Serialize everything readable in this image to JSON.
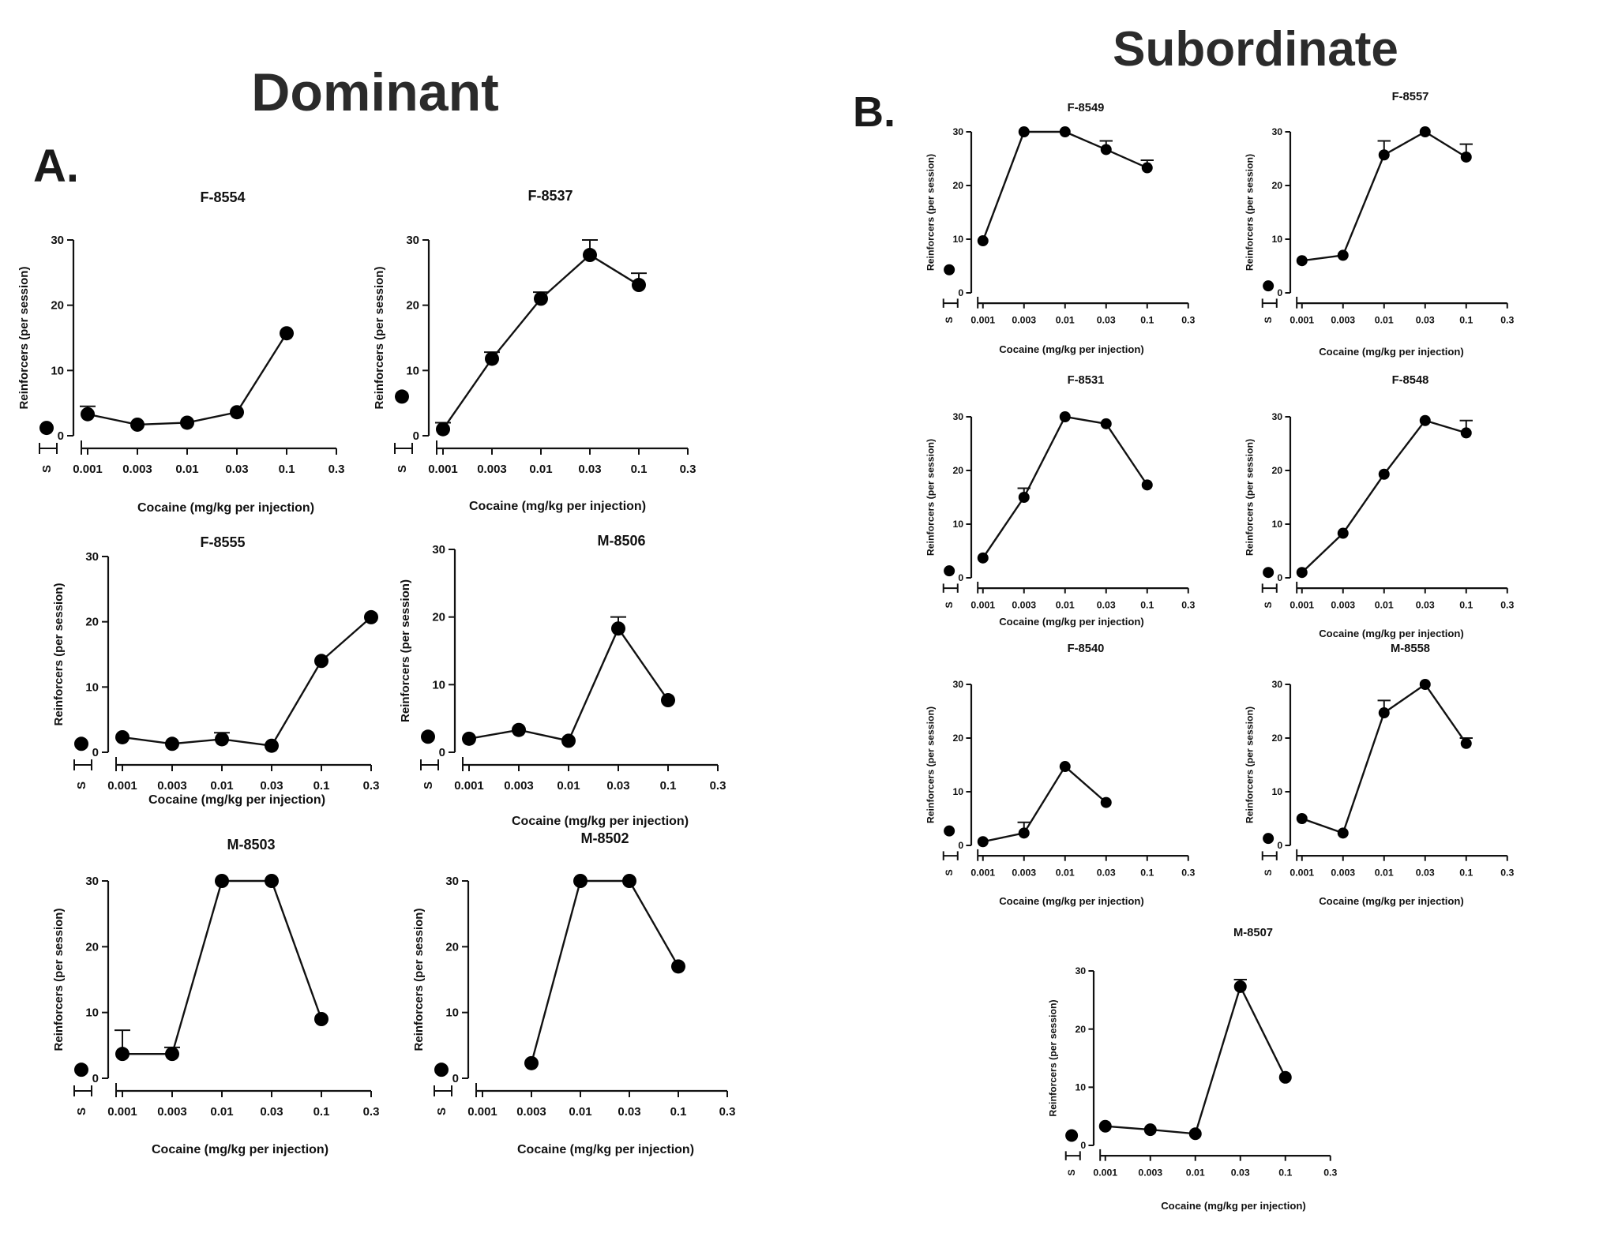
{
  "headings": {
    "dominant": "Dominant",
    "subordinate": "Subordinate",
    "panel_a": "A.",
    "panel_b": "B."
  },
  "chart_data": [
    {
      "type": "line",
      "group": "Dominant",
      "title": "F-8554",
      "xlabel": "Cocaine (mg/kg per injection)",
      "ylabel": "Reinforcers (per session)",
      "ylim": [
        0,
        30
      ],
      "yticks": [
        0,
        10,
        20,
        30
      ],
      "xticks": [
        "S",
        "0.001",
        "0.003",
        "0.01",
        "0.03",
        "0.1",
        "0.3"
      ],
      "saline": 1.2,
      "x": [
        "0.001",
        "0.003",
        "0.01",
        "0.03",
        "0.1"
      ],
      "values": [
        3.3,
        1.7,
        2.0,
        3.6,
        15.7
      ],
      "errors": [
        1.2,
        0,
        0,
        0,
        0
      ]
    },
    {
      "type": "line",
      "group": "Dominant",
      "title": "F-8537",
      "xlabel": "Cocaine (mg/kg per injection)",
      "ylabel": "Reinforcers (per session)",
      "ylim": [
        0,
        30
      ],
      "yticks": [
        0,
        10,
        20,
        30
      ],
      "xticks": [
        "S",
        "0.001",
        "0.003",
        "0.01",
        "0.03",
        "0.1",
        "0.3"
      ],
      "saline": 6.0,
      "x": [
        "0.001",
        "0.003",
        "0.01",
        "0.03",
        "0.1"
      ],
      "values": [
        1.0,
        11.8,
        21.0,
        27.7,
        23.1
      ],
      "errors": [
        1.0,
        1.0,
        1.0,
        2.3,
        1.8
      ]
    },
    {
      "type": "line",
      "group": "Dominant",
      "title": "F-8555",
      "xlabel": "Cocaine (mg/kg per injection)",
      "ylabel": "Reinforcers (per session)",
      "ylim": [
        0,
        30
      ],
      "yticks": [
        0,
        10,
        20,
        30
      ],
      "xticks": [
        "S",
        "0.001",
        "0.003",
        "0.01",
        "0.03",
        "0.1",
        "0.3"
      ],
      "saline": 1.3,
      "x": [
        "0.001",
        "0.003",
        "0.01",
        "0.03",
        "0.1",
        "0.3"
      ],
      "values": [
        2.3,
        1.3,
        2.0,
        1.0,
        14.0,
        20.7
      ],
      "errors": [
        0,
        0,
        1.0,
        0,
        0,
        0
      ]
    },
    {
      "type": "line",
      "group": "Dominant",
      "title": "M-8506",
      "xlabel": "Cocaine (mg/kg per injection)",
      "ylabel": "Reinforcers (per session)",
      "ylim": [
        0,
        30
      ],
      "yticks": [
        0,
        10,
        20,
        30
      ],
      "xticks": [
        "S",
        "0.001",
        "0.003",
        "0.01",
        "0.03",
        "0.1",
        "0.3"
      ],
      "saline": 2.3,
      "x": [
        "0.001",
        "0.003",
        "0.01",
        "0.03",
        "0.1"
      ],
      "values": [
        2.0,
        3.3,
        1.7,
        18.3,
        7.7
      ],
      "errors": [
        0,
        0,
        0,
        1.7,
        0
      ]
    },
    {
      "type": "line",
      "group": "Dominant",
      "title": "M-8503",
      "xlabel": "Cocaine (mg/kg per injection)",
      "ylabel": "Reinforcers (per session)",
      "ylim": [
        0,
        30
      ],
      "yticks": [
        0,
        10,
        20,
        30
      ],
      "xticks": [
        "S",
        "0.001",
        "0.003",
        "0.01",
        "0.03",
        "0.1",
        "0.3"
      ],
      "saline": 1.3,
      "x": [
        "0.001",
        "0.003",
        "0.01",
        "0.03",
        "0.1"
      ],
      "values": [
        3.7,
        3.7,
        30.0,
        30.0,
        9.0
      ],
      "errors": [
        3.6,
        1.0,
        0,
        0,
        0
      ]
    },
    {
      "type": "line",
      "group": "Dominant",
      "title": "M-8502",
      "xlabel": "Cocaine (mg/kg per injection)",
      "ylabel": "Reinforcers (per session)",
      "ylim": [
        0,
        30
      ],
      "yticks": [
        0,
        10,
        20,
        30
      ],
      "xticks": [
        "S",
        "0.001",
        "0.003",
        "0.01",
        "0.03",
        "0.1",
        "0.3"
      ],
      "saline": 1.3,
      "x": [
        "0.003",
        "0.01",
        "0.03",
        "0.1"
      ],
      "values": [
        2.3,
        30.0,
        30.0,
        17.0
      ],
      "errors": [
        0,
        0,
        0,
        0
      ]
    },
    {
      "type": "line",
      "group": "Subordinate",
      "title": "F-8549",
      "xlabel": "Cocaine (mg/kg per injection)",
      "ylabel": "Reinforcers (per session)",
      "ylim": [
        0,
        30
      ],
      "yticks": [
        0,
        10,
        20,
        30
      ],
      "xticks": [
        "S",
        "0.001",
        "0.003",
        "0.01",
        "0.03",
        "0.1",
        "0.3"
      ],
      "saline": 4.3,
      "x": [
        "0.001",
        "0.003",
        "0.01",
        "0.03",
        "0.1"
      ],
      "values": [
        9.7,
        30.0,
        30.0,
        26.7,
        23.3
      ],
      "errors": [
        0,
        0,
        0,
        1.6,
        1.4
      ]
    },
    {
      "type": "line",
      "group": "Subordinate",
      "title": "F-8557",
      "xlabel": "Cocaine (mg/kg per injection)",
      "ylabel": "Reinforcers (per session)",
      "ylim": [
        0,
        30
      ],
      "yticks": [
        0,
        10,
        20,
        30
      ],
      "xticks": [
        "S",
        "0.001",
        "0.003",
        "0.01",
        "0.03",
        "0.1",
        "0.3"
      ],
      "saline": 1.3,
      "x": [
        "0.001",
        "0.003",
        "0.01",
        "0.03",
        "0.1"
      ],
      "values": [
        6.0,
        7.0,
        25.7,
        30.0,
        25.3
      ],
      "errors": [
        0,
        0,
        2.6,
        0,
        2.4
      ]
    },
    {
      "type": "line",
      "group": "Subordinate",
      "title": "F-8531",
      "xlabel": "Cocaine (mg/kg per injection)",
      "ylabel": "Reinforcers (per session)",
      "ylim": [
        0,
        30
      ],
      "yticks": [
        0,
        10,
        20,
        30
      ],
      "xticks": [
        "S",
        "0.001",
        "0.003",
        "0.01",
        "0.03",
        "0.1",
        "0.3"
      ],
      "saline": 1.3,
      "x": [
        "0.001",
        "0.003",
        "0.01",
        "0.03",
        "0.1"
      ],
      "values": [
        3.7,
        15.0,
        30.0,
        28.7,
        17.3
      ],
      "errors": [
        0,
        1.7,
        0,
        0,
        0
      ]
    },
    {
      "type": "line",
      "group": "Subordinate",
      "title": "F-8548",
      "xlabel": "Cocaine (mg/kg per injection)",
      "ylabel": "Reinforcers (per session)",
      "ylim": [
        0,
        30
      ],
      "yticks": [
        0,
        10,
        20,
        30
      ],
      "xticks": [
        "S",
        "0.001",
        "0.003",
        "0.01",
        "0.03",
        "0.1",
        "0.3"
      ],
      "saline": 1.0,
      "x": [
        "0.001",
        "0.003",
        "0.01",
        "0.03",
        "0.1"
      ],
      "values": [
        1.0,
        8.3,
        19.3,
        29.3,
        27.0
      ],
      "errors": [
        0,
        0,
        0,
        0,
        2.3
      ]
    },
    {
      "type": "line",
      "group": "Subordinate",
      "title": "F-8540",
      "xlabel": "Cocaine (mg/kg per injection)",
      "ylabel": "Reinforcers (per session)",
      "ylim": [
        0,
        30
      ],
      "yticks": [
        0,
        10,
        20,
        30
      ],
      "xticks": [
        "S",
        "0.001",
        "0.003",
        "0.01",
        "0.03",
        "0.1",
        "0.3"
      ],
      "saline": 2.7,
      "x": [
        "0.001",
        "0.003",
        "0.01",
        "0.03"
      ],
      "values": [
        0.7,
        2.3,
        14.7,
        8.0
      ],
      "errors": [
        0,
        2.0,
        0,
        0
      ]
    },
    {
      "type": "line",
      "group": "Subordinate",
      "title": "M-8558",
      "xlabel": "Cocaine (mg/kg per injection)",
      "ylabel": "Reinforcers (per session)",
      "ylim": [
        0,
        30
      ],
      "yticks": [
        0,
        10,
        20,
        30
      ],
      "xticks": [
        "S",
        "0.001",
        "0.003",
        "0.01",
        "0.03",
        "0.1",
        "0.3"
      ],
      "saline": 1.3,
      "x": [
        "0.001",
        "0.003",
        "0.01",
        "0.03",
        "0.1"
      ],
      "values": [
        5.0,
        2.3,
        24.7,
        30.0,
        19.0
      ],
      "errors": [
        0,
        0,
        2.3,
        0,
        1.0
      ]
    },
    {
      "type": "line",
      "group": "Subordinate",
      "title": "M-8507",
      "xlabel": "Cocaine (mg/kg per injection)",
      "ylabel": "Reinforcers (per session)",
      "ylim": [
        0,
        30
      ],
      "yticks": [
        0,
        10,
        20,
        30
      ],
      "xticks": [
        "S",
        "0.001",
        "0.003",
        "0.01",
        "0.03",
        "0.1",
        "0.3"
      ],
      "saline": 1.7,
      "x": [
        "0.001",
        "0.003",
        "0.01",
        "0.03",
        "0.1"
      ],
      "values": [
        3.3,
        2.7,
        2.0,
        27.3,
        11.7
      ],
      "errors": [
        0,
        0,
        0,
        1.2,
        0
      ]
    }
  ]
}
